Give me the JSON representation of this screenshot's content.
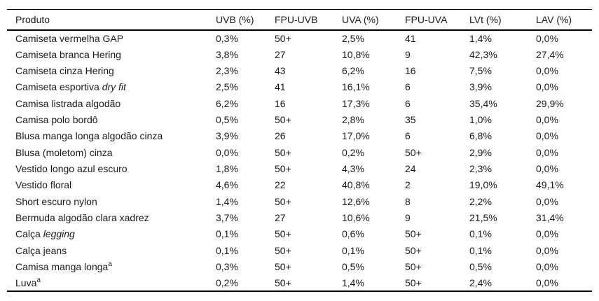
{
  "table": {
    "title_semantic": "uv-protection-clothing-table",
    "columns": [
      {
        "label": "Produto"
      },
      {
        "label": "UVB (%)"
      },
      {
        "label": "FPU-UVB"
      },
      {
        "label": "UVA (%)"
      },
      {
        "label": "FPU-UVA"
      },
      {
        "label": "LVt (%)"
      },
      {
        "label": "LAV (%)"
      }
    ],
    "rows": [
      {
        "produto": [
          {
            "t": "Camiseta vermelha GAP"
          }
        ],
        "values": [
          "0,3%",
          "50+",
          "2,5%",
          "41",
          "1,4%",
          "0,0%"
        ]
      },
      {
        "produto": [
          {
            "t": "Camiseta branca Hering"
          }
        ],
        "values": [
          "3,8%",
          "27",
          "10,8%",
          "9",
          "42,3%",
          "27,4%"
        ]
      },
      {
        "produto": [
          {
            "t": "Camiseta cinza Hering"
          }
        ],
        "values": [
          "2,3%",
          "43",
          "6,2%",
          "16",
          "7,5%",
          "0,0%"
        ]
      },
      {
        "produto": [
          {
            "t": "Camiseta esportiva "
          },
          {
            "t": "dry fit",
            "style": "italic"
          }
        ],
        "values": [
          "2,5%",
          "41",
          "16,1%",
          "6",
          "3,9%",
          "0,0%"
        ]
      },
      {
        "produto": [
          {
            "t": "Camisa listrada algodão"
          }
        ],
        "values": [
          "6,2%",
          "16",
          "17,3%",
          "6",
          "35,4%",
          "29,9%"
        ]
      },
      {
        "produto": [
          {
            "t": "Camisa polo bordô"
          }
        ],
        "values": [
          "0,5%",
          "50+",
          "2,8%",
          "35",
          "1,0%",
          "0,0%"
        ]
      },
      {
        "produto": [
          {
            "t": "Blusa manga longa algodão cinza"
          }
        ],
        "values": [
          "3,9%",
          "26",
          "17,0%",
          "6",
          "6,8%",
          "0,0%"
        ]
      },
      {
        "produto": [
          {
            "t": "Blusa (moletom) cinza"
          }
        ],
        "values": [
          "0,0%",
          "50+",
          "0,2%",
          "50+",
          "2,9%",
          "0,0%"
        ]
      },
      {
        "produto": [
          {
            "t": "Vestido longo azul escuro"
          }
        ],
        "values": [
          "1,8%",
          "50+",
          "4,3%",
          "24",
          "2,3%",
          "0,0%"
        ]
      },
      {
        "produto": [
          {
            "t": "Vestido floral"
          }
        ],
        "values": [
          "4,6%",
          "22",
          "40,8%",
          "2",
          "19,0%",
          "49,1%"
        ]
      },
      {
        "produto": [
          {
            "t": "Short escuro nylon"
          }
        ],
        "values": [
          "1,4%",
          "50+",
          "12,6%",
          "8",
          "2,2%",
          "0,0%"
        ]
      },
      {
        "produto": [
          {
            "t": "Bermuda algodão clara xadrez"
          }
        ],
        "values": [
          "3,7%",
          "27",
          "10,6%",
          "9",
          "21,5%",
          "31,4%"
        ]
      },
      {
        "produto": [
          {
            "t": "Calça "
          },
          {
            "t": "legging",
            "style": "italic"
          }
        ],
        "values": [
          "0,1%",
          "50+",
          "0,6%",
          "50+",
          "0,1%",
          "0,0%"
        ]
      },
      {
        "produto": [
          {
            "t": "Calça jeans"
          }
        ],
        "values": [
          "0,1%",
          "50+",
          "0,1%",
          "50+",
          "0,1%",
          "0,0%"
        ]
      },
      {
        "produto": [
          {
            "t": "Camisa manga longa"
          },
          {
            "t": "a",
            "style": "sup"
          }
        ],
        "values": [
          "0,3%",
          "50+",
          "0,5%",
          "50+",
          "0,5%",
          "0,0%"
        ]
      },
      {
        "produto": [
          {
            "t": "Luva"
          },
          {
            "t": "a",
            "style": "sup"
          }
        ],
        "values": [
          "0,2%",
          "50+",
          "1,4%",
          "50+",
          "2,4%",
          "0,0%"
        ]
      }
    ],
    "colors": {
      "text": "#1a1a1a",
      "border": "#000000",
      "background": "#ffffff"
    }
  },
  "chart_data": {
    "type": "table",
    "title": "",
    "categories": [
      "Produto",
      "UVB (%)",
      "FPU-UVB",
      "UVA (%)",
      "FPU-UVA",
      "LVt (%)",
      "LAV (%)"
    ],
    "series": [
      {
        "name": "UVB (%)",
        "values": [
          "0,3%",
          "3,8%",
          "2,3%",
          "2,5%",
          "6,2%",
          "0,5%",
          "3,9%",
          "0,0%",
          "1,8%",
          "4,6%",
          "1,4%",
          "3,7%",
          "0,1%",
          "0,1%",
          "0,3%",
          "0,2%"
        ]
      },
      {
        "name": "FPU-UVB",
        "values": [
          "50+",
          "27",
          "43",
          "41",
          "16",
          "50+",
          "26",
          "50+",
          "50+",
          "22",
          "50+",
          "27",
          "50+",
          "50+",
          "50+",
          "50+"
        ]
      },
      {
        "name": "UVA (%)",
        "values": [
          "2,5%",
          "10,8%",
          "6,2%",
          "16,1%",
          "17,3%",
          "2,8%",
          "17,0%",
          "0,2%",
          "4,3%",
          "40,8%",
          "12,6%",
          "10,6%",
          "0,6%",
          "0,1%",
          "0,5%",
          "1,4%"
        ]
      },
      {
        "name": "FPU-UVA",
        "values": [
          "41",
          "9",
          "16",
          "6",
          "6",
          "35",
          "6",
          "50+",
          "24",
          "2",
          "8",
          "9",
          "50+",
          "50+",
          "50+",
          "50+"
        ]
      },
      {
        "name": "LVt (%)",
        "values": [
          "1,4%",
          "42,3%",
          "7,5%",
          "3,9%",
          "35,4%",
          "1,0%",
          "6,8%",
          "2,9%",
          "2,3%",
          "19,0%",
          "2,2%",
          "21,5%",
          "0,1%",
          "0,1%",
          "0,5%",
          "2,4%"
        ]
      },
      {
        "name": "LAV (%)",
        "values": [
          "0,0%",
          "27,4%",
          "0,0%",
          "0,0%",
          "29,9%",
          "0,0%",
          "0,0%",
          "0,0%",
          "0,0%",
          "49,1%",
          "0,0%",
          "31,4%",
          "0,0%",
          "0,0%",
          "0,0%",
          "0,0%"
        ]
      }
    ],
    "row_labels": [
      "Camiseta vermelha GAP",
      "Camiseta branca Hering",
      "Camiseta cinza Hering",
      "Camiseta esportiva dry fit",
      "Camisa listrada algodão",
      "Camisa polo bordô",
      "Blusa manga longa algodão cinza",
      "Blusa (moletom) cinza",
      "Vestido longo azul escuro",
      "Vestido floral",
      "Short escuro nylon",
      "Bermuda algodão clara xadrez",
      "Calça legging",
      "Calça jeans",
      "Camisa manga longa a",
      "Luva a"
    ]
  }
}
